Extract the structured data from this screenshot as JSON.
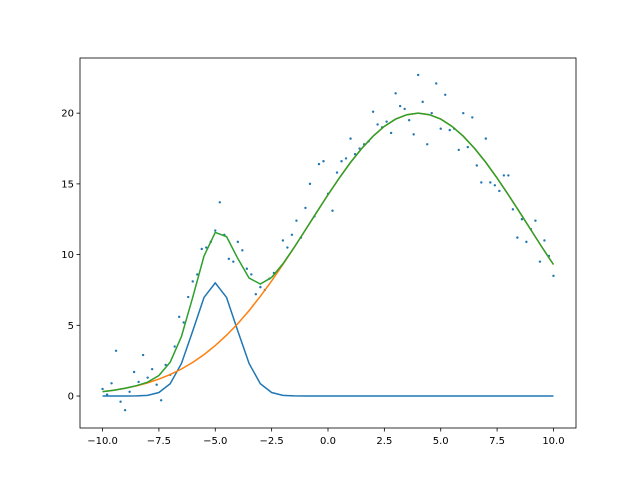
{
  "chart_data": {
    "type": "line",
    "xlim": [
      -11,
      11
    ],
    "ylim": [
      -2.26,
      23.9
    ],
    "xticks": [
      {
        "value": -10,
        "label": "−10.0"
      },
      {
        "value": -7.5,
        "label": "−7.5"
      },
      {
        "value": -5,
        "label": "−5.0"
      },
      {
        "value": -2.5,
        "label": "−2.5"
      },
      {
        "value": 0,
        "label": "0.0"
      },
      2.5,
      {
        "value": 5,
        "label": "5.0"
      },
      7.5,
      {
        "value": 10,
        "label": "10.0"
      }
    ],
    "yticks": [
      0,
      5,
      10,
      15,
      20
    ],
    "x": [
      -10,
      -9.5,
      -9,
      -8.5,
      -8,
      -7.5,
      -7,
      -6.5,
      -6,
      -5.5,
      -5,
      -4.5,
      -4,
      -3.5,
      -3,
      -2.5,
      -2,
      -1.5,
      -1,
      -0.5,
      0,
      0.5,
      1,
      1.5,
      2,
      2.5,
      3,
      3.5,
      4,
      4.5,
      5,
      5.5,
      6,
      6.5,
      7,
      7.5,
      8,
      8.5,
      9,
      9.5,
      10
    ],
    "series": [
      {
        "type": "scatter",
        "color": "#1f77b4",
        "x": [
          -10,
          -9.8,
          -9.6,
          -9.4,
          -9.2,
          -9,
          -8.8,
          -8.6,
          -8.4,
          -8.2,
          -8,
          -7.8,
          -7.6,
          -7.4,
          -7.2,
          -7,
          -6.8,
          -6.6,
          -6.4,
          -6.2,
          -6,
          -5.8,
          -5.6,
          -5.4,
          -5.2,
          -5,
          -4.8,
          -4.6,
          -4.4,
          -4.2,
          -4,
          -3.8,
          -3.6,
          -3.4,
          -3.2,
          -3,
          -2.8,
          -2.6,
          -2.4,
          -2.2,
          -2,
          -1.8,
          -1.6,
          -1.4,
          -1.2,
          -1,
          -0.8,
          -0.6,
          -0.4,
          -0.2,
          0,
          0.2,
          0.4,
          0.6,
          0.8,
          1,
          1.2,
          1.4,
          1.6,
          1.8,
          2,
          2.2,
          2.4,
          2.6,
          2.8,
          3,
          3.2,
          3.4,
          3.6,
          3.8,
          4,
          4.2,
          4.4,
          4.6,
          4.8,
          5,
          5.2,
          5.4,
          5.6,
          5.8,
          6,
          6.2,
          6.4,
          6.6,
          6.8,
          7,
          7.2,
          7.4,
          7.6,
          7.8,
          8,
          8.2,
          8.4,
          8.6,
          8.8,
          9,
          9.2,
          9.4,
          9.6,
          9.8,
          10
        ],
        "values": [
          0.5,
          0.1,
          0.9,
          3.2,
          -0.4,
          -1.0,
          0.3,
          1.7,
          1.0,
          2.9,
          1.3,
          1.9,
          0.8,
          -0.3,
          2.2,
          1.5,
          3.5,
          5.6,
          5.2,
          7.0,
          8.1,
          8.6,
          10.4,
          10.5,
          10.9,
          11.7,
          13.7,
          11.4,
          9.7,
          9.5,
          10.9,
          10.3,
          9.0,
          8.6,
          7.2,
          7.7,
          7.5,
          8.3,
          8.7,
          8.9,
          11.0,
          10.5,
          11.4,
          12.4,
          11.2,
          13.3,
          15.0,
          12.7,
          16.4,
          16.6,
          14.3,
          13.1,
          15.8,
          16.6,
          16.8,
          18.2,
          17.1,
          17.5,
          17.8,
          18.0,
          20.1,
          19.2,
          19.0,
          19.4,
          18.6,
          21.4,
          20.5,
          20.3,
          19.5,
          18.5,
          22.7,
          20.8,
          17.8,
          20.0,
          22.1,
          18.9,
          21.3,
          18.8,
          18.9,
          17.4,
          20.0,
          17.6,
          19.7,
          16.3,
          15.1,
          18.2,
          15.1,
          14.9,
          14.5,
          15.6,
          15.6,
          13.2,
          11.2,
          12.5,
          10.9,
          11.8,
          12.4,
          9.5,
          11.0,
          9.9,
          8.5
        ]
      },
      {
        "type": "line",
        "color": "#1f77b4",
        "values": [
          0,
          0,
          0,
          0.01,
          0.05,
          0.25,
          0.87,
          2.3,
          4.6,
          6.97,
          8,
          6.97,
          4.6,
          2.3,
          0.87,
          0.25,
          0.05,
          0.01,
          0,
          0,
          0,
          0,
          0,
          0,
          0,
          0,
          0,
          0,
          0,
          0,
          0,
          0,
          0,
          0,
          0,
          0,
          0,
          0,
          0,
          0,
          0
        ]
      },
      {
        "type": "line",
        "color": "#ff7f0e",
        "values": [
          0.31,
          0.41,
          0.55,
          0.72,
          0.93,
          1.2,
          1.52,
          1.91,
          2.38,
          2.93,
          3.57,
          4.3,
          5.12,
          6.04,
          7.05,
          8.14,
          9.3,
          10.5,
          11.75,
          13.0,
          14.23,
          15.41,
          16.52,
          17.51,
          18.37,
          19.07,
          19.58,
          19.89,
          20,
          19.89,
          19.58,
          19.07,
          18.37,
          17.51,
          16.52,
          15.41,
          14.23,
          13.0,
          11.75,
          10.5,
          9.3
        ]
      },
      {
        "type": "line",
        "color": "#2ca02c",
        "values": [
          0.31,
          0.41,
          0.55,
          0.73,
          0.98,
          1.45,
          2.39,
          4.21,
          6.98,
          9.9,
          11.57,
          11.27,
          9.72,
          8.34,
          7.92,
          8.39,
          9.35,
          10.51,
          11.75,
          13.0,
          14.23,
          15.41,
          16.52,
          17.51,
          18.37,
          19.07,
          19.58,
          19.89,
          20,
          19.89,
          19.58,
          19.07,
          18.37,
          17.51,
          16.52,
          15.41,
          14.23,
          13.0,
          11.75,
          10.5,
          9.3
        ]
      }
    ]
  }
}
